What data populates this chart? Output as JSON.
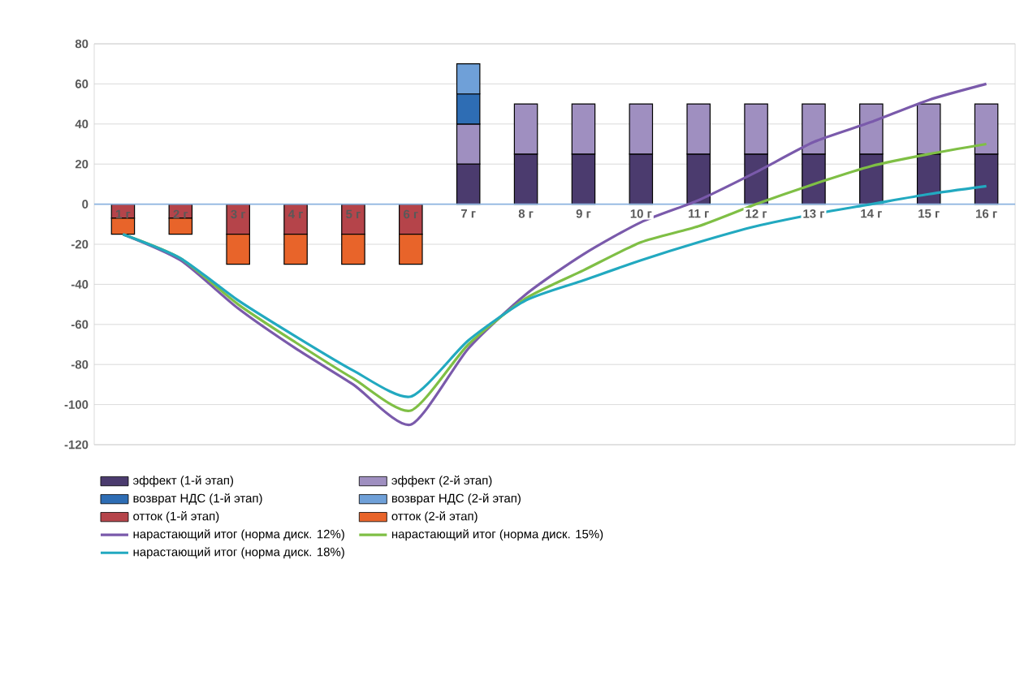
{
  "chart_data": {
    "type": "bar",
    "stacked": true,
    "grid": true,
    "legend": "bottom",
    "categories": [
      "1 г",
      "2 г",
      "3 г",
      "4 г",
      "5 г",
      "6 г",
      "7 г",
      "8 г",
      "9 г",
      "10 г",
      "11 г",
      "12 г",
      "13 г",
      "14 г",
      "15 г",
      "16 г"
    ],
    "ylim": [
      -120,
      80
    ],
    "yticks": [
      -120,
      -100,
      -80,
      -60,
      -40,
      -20,
      0,
      20,
      40,
      60,
      80
    ],
    "series": [
      {
        "name": "эффект (1-й этап)",
        "color": "#4b3b6e",
        "values": [
          null,
          null,
          null,
          null,
          null,
          null,
          20,
          25,
          25,
          25,
          25,
          25,
          25,
          25,
          25,
          25
        ]
      },
      {
        "name": "эффект (2-й этап)",
        "color": "#9f8fc0",
        "values": [
          null,
          null,
          null,
          null,
          null,
          null,
          20,
          25,
          25,
          25,
          25,
          25,
          25,
          25,
          25,
          25
        ]
      },
      {
        "name": "возврат НДС (1-й этап)",
        "color": "#2e6db4",
        "values": [
          null,
          null,
          null,
          null,
          null,
          null,
          15,
          null,
          null,
          null,
          null,
          null,
          null,
          null,
          null,
          null
        ]
      },
      {
        "name": "возврат НДС (2-й этап)",
        "color": "#6fa0d8",
        "values": [
          null,
          null,
          null,
          null,
          null,
          null,
          15,
          null,
          null,
          null,
          null,
          null,
          null,
          null,
          null,
          null
        ]
      },
      {
        "name": "отток (1-й этап)",
        "color": "#b5444a",
        "values": [
          -7,
          -7,
          -15,
          -15,
          -15,
          -15,
          null,
          null,
          null,
          null,
          null,
          null,
          null,
          null,
          null,
          null
        ]
      },
      {
        "name": "отток (2-й этап)",
        "color": "#e8642a",
        "values": [
          -8,
          -8,
          -15,
          -15,
          -15,
          -15,
          null,
          null,
          null,
          null,
          null,
          null,
          null,
          null,
          null,
          null
        ]
      },
      {
        "name": "нарастающий итог (норма диск. 12%)",
        "type": "line",
        "color": "#7a5aab",
        "values": [
          -15,
          -28,
          -52,
          -72,
          -90,
          -110,
          -72,
          -45,
          -25,
          -9,
          2,
          16,
          31,
          41,
          52,
          60
        ]
      },
      {
        "name": "нарастающий итог (норма диск. 15%)",
        "type": "line",
        "color": "#7fbf45",
        "values": [
          -15,
          -27,
          -50,
          -69,
          -87,
          -103,
          -70,
          -47,
          -33,
          -19,
          -11,
          0,
          10,
          19,
          25,
          30
        ]
      },
      {
        "name": "нарастающий итог (норма диск. 18%)",
        "type": "line",
        "color": "#22a9c0",
        "values": [
          -15,
          -27,
          -48,
          -66,
          -83,
          -96,
          -68,
          -48,
          -38,
          -28,
          -19,
          -11,
          -5,
          0,
          5,
          9
        ]
      }
    ]
  }
}
